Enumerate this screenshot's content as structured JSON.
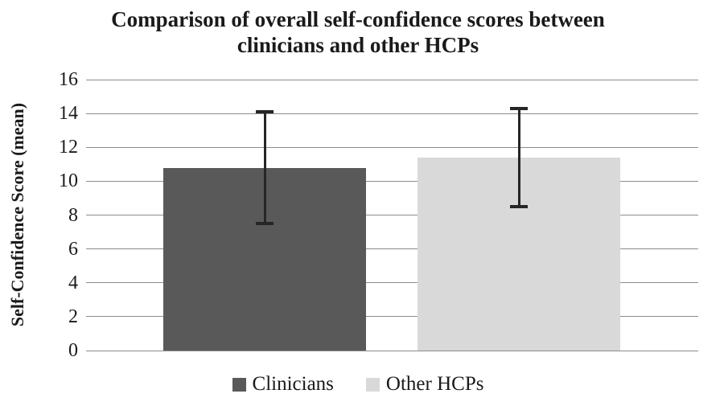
{
  "chart_data": {
    "type": "bar",
    "title": "Comparison of overall self-confidence scores between clinicians and other HCPs",
    "title_lines": [
      "Comparison of overall self-confidence scores between",
      "clinicians and other HCPs"
    ],
    "ylabel": "Self-Confidence Score (mean)",
    "xlabel": "",
    "ylim": [
      0,
      16
    ],
    "yticks": [
      0,
      2,
      4,
      6,
      8,
      10,
      12,
      14,
      16
    ],
    "grid": true,
    "legend_position": "bottom",
    "bars": [
      {
        "label": "Clinicians",
        "value": 10.8,
        "error_low": 7.5,
        "error_high": 14.1,
        "color": "#595959"
      },
      {
        "label": "Other HCPs",
        "value": 11.4,
        "error_low": 8.5,
        "error_high": 14.3,
        "color": "#d9d9d9"
      }
    ],
    "colors": {
      "grid": "#8c8c8c",
      "axis": "#8c8c8c",
      "error_bar": "#262626",
      "text": "#1a1a1a",
      "background": "#ffffff"
    }
  }
}
